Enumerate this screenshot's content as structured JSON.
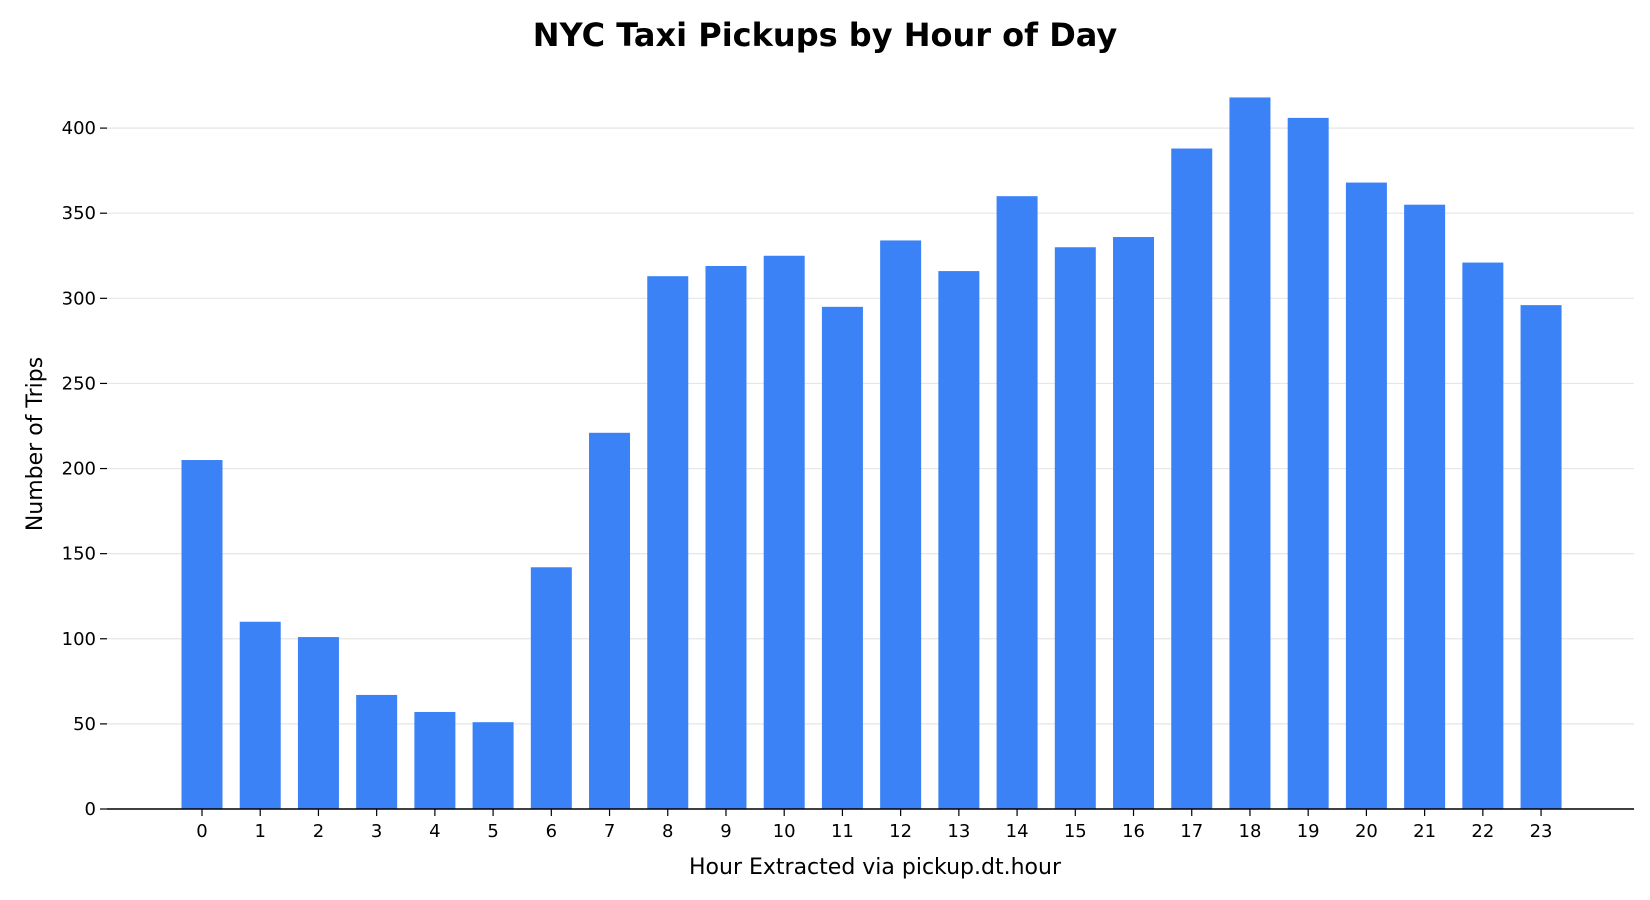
{
  "chart_data": {
    "type": "bar",
    "title": "NYC Taxi Pickups by Hour of Day",
    "xlabel": "Hour Extracted via pickup.dt.hour",
    "ylabel": "Number of Trips",
    "categories": [
      "0",
      "1",
      "2",
      "3",
      "4",
      "5",
      "6",
      "7",
      "8",
      "9",
      "10",
      "11",
      "12",
      "13",
      "14",
      "15",
      "16",
      "17",
      "18",
      "19",
      "20",
      "21",
      "22",
      "23"
    ],
    "values": [
      205,
      110,
      101,
      67,
      57,
      51,
      142,
      221,
      313,
      319,
      325,
      295,
      334,
      316,
      360,
      330,
      336,
      388,
      418,
      406,
      368,
      355,
      321,
      296
    ],
    "ylim": [
      0,
      440
    ],
    "yticks": [
      0,
      50,
      100,
      150,
      200,
      250,
      300,
      350,
      400
    ],
    "grid": "horizontal",
    "colors": {
      "bar": "#3b82f6",
      "grid": "#e6e6e6",
      "axis": "#000000"
    }
  }
}
